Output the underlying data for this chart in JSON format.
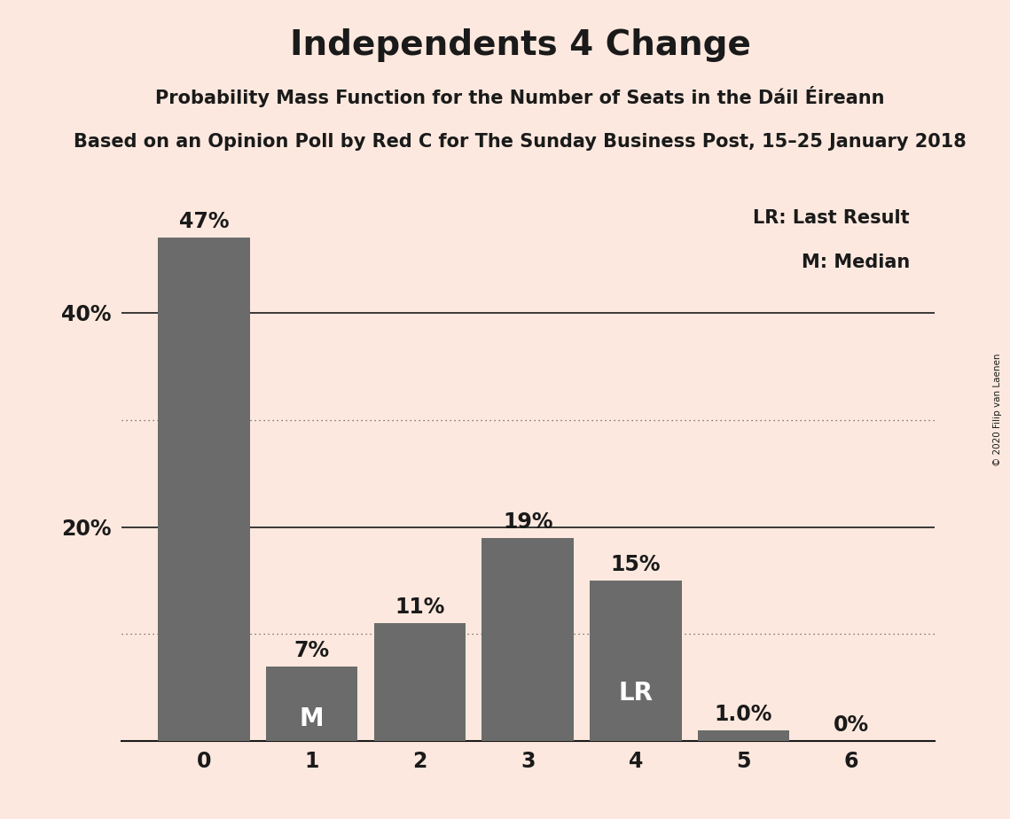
{
  "title": "Independents 4 Change",
  "subtitle": "Probability Mass Function for the Number of Seats in the Dáil Éireann",
  "source": "Based on an Opinion Poll by Red C for The Sunday Business Post, 15–25 January 2018",
  "copyright": "© 2020 Filip van Laenen",
  "categories": [
    0,
    1,
    2,
    3,
    4,
    5,
    6
  ],
  "values": [
    47,
    7,
    11,
    19,
    15,
    1.0,
    0
  ],
  "bar_color": "#6b6b6b",
  "background_color": "#fce8de",
  "label_color": "#1a1a1a",
  "bar_labels": [
    "47%",
    "7%",
    "11%",
    "19%",
    "15%",
    "1.0%",
    "0%"
  ],
  "inside_labels": [
    {
      "bar": 1,
      "text": "M",
      "color": "#ffffff"
    },
    {
      "bar": 4,
      "text": "LR",
      "color": "#ffffff"
    }
  ],
  "legend": [
    "LR: Last Result",
    "M: Median"
  ],
  "solid_hlines": [
    20,
    40
  ],
  "dotted_hlines": [
    10,
    30
  ],
  "ylim": [
    0,
    52
  ],
  "title_fontsize": 28,
  "subtitle_fontsize": 15,
  "source_fontsize": 15,
  "axis_fontsize": 17,
  "bar_label_fontsize": 17,
  "inside_label_fontsize": 20,
  "legend_fontsize": 15
}
